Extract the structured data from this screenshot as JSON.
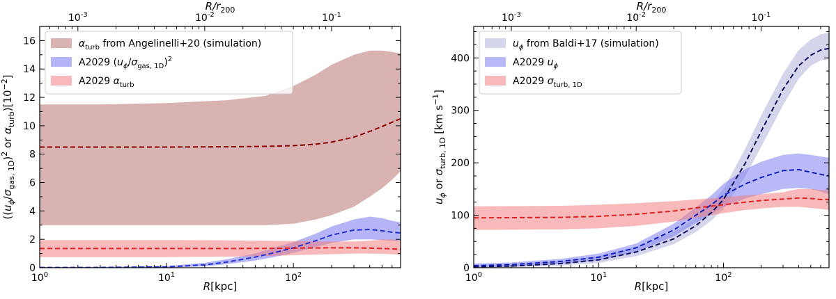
{
  "chart_data": [
    {
      "type": "area",
      "xscale": "log",
      "xlim": [
        1,
        700
      ],
      "ylim": [
        0,
        17
      ],
      "xlabel": "R[kpc]",
      "ylabel": "((u_φ/σ_gas,1D)^2 or α_turb)[10^-2]",
      "top_xlabel": "R/r200",
      "xticks": [
        "10^0",
        "10^1",
        "10^2"
      ],
      "yticks": [
        "0",
        "2",
        "4",
        "6",
        "8",
        "10",
        "12",
        "14",
        "16"
      ],
      "top_xticks": [
        "10^-3",
        "10^-2",
        "10^-1"
      ],
      "legend_position": "top-left",
      "series": [
        {
          "name": "α_turb from Angelinelli+20 (simulation)",
          "color": "#b97373",
          "line_color": "#8b0000",
          "x": [
            1,
            3,
            10,
            30,
            60,
            100,
            150,
            200,
            300,
            400,
            500,
            600,
            700
          ],
          "center": [
            8.5,
            8.5,
            8.5,
            8.52,
            8.55,
            8.6,
            8.7,
            8.85,
            9.2,
            9.6,
            9.95,
            10.25,
            10.5
          ],
          "lower": [
            3.0,
            3.0,
            3.0,
            3.0,
            3.0,
            3.1,
            3.4,
            3.7,
            4.3,
            5.0,
            5.6,
            6.2,
            6.8
          ],
          "upper": [
            11.5,
            11.5,
            11.6,
            11.8,
            12.1,
            12.8,
            13.6,
            14.3,
            15.0,
            15.3,
            15.3,
            15.2,
            15.1
          ]
        },
        {
          "name": "A2029 (u_φ/σ_gas,1D)^2",
          "color": "#7777ee",
          "line_color": "#1f2fd0",
          "x": [
            1,
            3,
            10,
            20,
            30,
            50,
            70,
            100,
            150,
            200,
            300,
            400,
            500,
            600,
            700
          ],
          "center": [
            0.02,
            0.02,
            0.06,
            0.2,
            0.4,
            0.75,
            1.05,
            1.4,
            1.9,
            2.3,
            2.65,
            2.7,
            2.6,
            2.5,
            2.45
          ],
          "lower": [
            0.0,
            0.0,
            0.0,
            0.1,
            0.25,
            0.5,
            0.75,
            1.05,
            1.45,
            1.75,
            2.0,
            2.0,
            1.95,
            1.9,
            1.85
          ],
          "upper": [
            0.05,
            0.06,
            0.12,
            0.35,
            0.6,
            1.0,
            1.4,
            1.8,
            2.4,
            2.9,
            3.4,
            3.6,
            3.5,
            3.3,
            3.2
          ]
        },
        {
          "name": "A2029 α_turb",
          "color": "#f08080",
          "line_color": "#e02020",
          "x": [
            1,
            10,
            30,
            60,
            100,
            200,
            300,
            400,
            500,
            600,
            700
          ],
          "center": [
            1.35,
            1.35,
            1.35,
            1.36,
            1.38,
            1.4,
            1.4,
            1.38,
            1.35,
            1.33,
            1.3
          ],
          "lower": [
            0.75,
            0.75,
            0.78,
            0.82,
            0.88,
            0.95,
            1.0,
            1.0,
            0.98,
            0.95,
            0.92
          ],
          "upper": [
            1.95,
            1.95,
            1.93,
            1.9,
            1.88,
            1.85,
            1.85,
            1.9,
            2.0,
            2.0,
            1.9
          ]
        }
      ]
    },
    {
      "type": "area",
      "xscale": "log",
      "xlim": [
        1,
        700
      ],
      "ylim": [
        0,
        460
      ],
      "xlabel": "R[kpc]",
      "ylabel": "u_φ or σ_turb,1D [km s^-1]",
      "top_xlabel": "R/r200",
      "xticks": [
        "10^0",
        "10^1",
        "10^2"
      ],
      "yticks": [
        "0",
        "100",
        "200",
        "300",
        "400"
      ],
      "top_xticks": [
        "10^-3",
        "10^-2",
        "10^-1"
      ],
      "legend_position": "top-left",
      "series": [
        {
          "name": "u_φ from Baldi+17 (simulation)",
          "color": "#b3b3dd",
          "line_color": "#0b0b5e",
          "x": [
            1,
            2,
            5,
            10,
            20,
            40,
            60,
            80,
            100,
            150,
            200,
            300,
            400,
            500,
            600,
            700
          ],
          "center": [
            2,
            3,
            8,
            15,
            30,
            55,
            80,
            105,
            130,
            200,
            260,
            340,
            385,
            405,
            415,
            418
          ],
          "lower": [
            0,
            1,
            4,
            9,
            22,
            45,
            68,
            90,
            112,
            175,
            230,
            310,
            360,
            385,
            395,
            398
          ],
          "upper": [
            5,
            7,
            13,
            22,
            40,
            68,
            95,
            122,
            150,
            228,
            290,
            370,
            415,
            435,
            445,
            448
          ]
        },
        {
          "name": "A2029 u_φ",
          "color": "#8080f0",
          "line_color": "#1020c0",
          "x": [
            1,
            2,
            5,
            10,
            20,
            40,
            60,
            80,
            100,
            150,
            200,
            300,
            400,
            500,
            600,
            700
          ],
          "center": [
            4,
            6,
            12,
            20,
            38,
            72,
            100,
            120,
            138,
            160,
            172,
            185,
            187,
            182,
            178,
            175
          ],
          "lower": [
            0,
            2,
            7,
            14,
            30,
            60,
            85,
            102,
            116,
            132,
            140,
            150,
            152,
            150,
            145,
            140
          ],
          "upper": [
            8,
            10,
            17,
            27,
            46,
            84,
            115,
            138,
            160,
            188,
            202,
            215,
            218,
            215,
            212,
            210
          ]
        },
        {
          "name": "A2029 σ_turb,1D",
          "color": "#f08080",
          "line_color": "#e02020",
          "x": [
            1,
            5,
            10,
            20,
            40,
            60,
            100,
            150,
            200,
            300,
            400,
            500,
            600,
            700
          ],
          "center": [
            95,
            96,
            98,
            102,
            108,
            114,
            120,
            125,
            128,
            131,
            133,
            132,
            130,
            130
          ],
          "lower": [
            72,
            73,
            75,
            80,
            88,
            95,
            104,
            110,
            113,
            116,
            116,
            114,
            112,
            110
          ],
          "upper": [
            117,
            118,
            120,
            123,
            127,
            130,
            134,
            138,
            140,
            144,
            150,
            150,
            148,
            148
          ]
        }
      ]
    }
  ]
}
